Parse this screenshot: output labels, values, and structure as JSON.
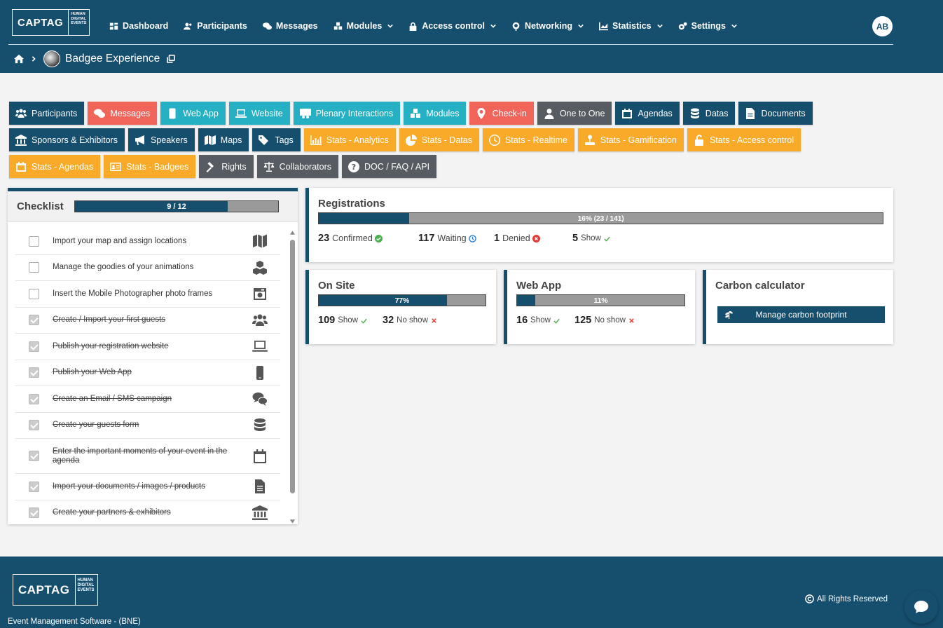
{
  "brand": {
    "logo_main": "CAPTAG",
    "logo_sub": [
      "HUMAN",
      "DIGITAL",
      "EVENTS"
    ]
  },
  "nav": [
    {
      "label": "Dashboard",
      "icon": "dashboard-icon",
      "dropdown": false
    },
    {
      "label": "Participants",
      "icon": "users-icon",
      "dropdown": false
    },
    {
      "label": "Messages",
      "icon": "chat-icon",
      "dropdown": false
    },
    {
      "label": "Modules",
      "icon": "cubes-icon",
      "dropdown": true
    },
    {
      "label": "Access control",
      "icon": "lock-icon",
      "dropdown": true
    },
    {
      "label": "Networking",
      "icon": "network-icon",
      "dropdown": true
    },
    {
      "label": "Statistics",
      "icon": "chart-icon",
      "dropdown": true
    },
    {
      "label": "Settings",
      "icon": "gears-icon",
      "dropdown": true
    }
  ],
  "user": {
    "initials": "AB"
  },
  "breadcrumb": {
    "event_name": "Badgee Experience"
  },
  "tiles": {
    "row1": [
      {
        "label": "Participants",
        "color": "#164e6e"
      },
      {
        "label": "Messages",
        "color": "#f0645a"
      },
      {
        "label": "Web App",
        "color": "#26b0c4"
      },
      {
        "label": "Website",
        "color": "#26b0c4"
      },
      {
        "label": "Plenary Interactions",
        "color": "#26b0c4"
      },
      {
        "label": "Modules",
        "color": "#26b0c4"
      },
      {
        "label": "Check-in",
        "color": "#f0645a"
      },
      {
        "label": "One to One",
        "color": "#565c61"
      },
      {
        "label": "Agendas",
        "color": "#164e6e"
      },
      {
        "label": "Datas",
        "color": "#164e6e"
      },
      {
        "label": "Documents",
        "color": "#164e6e"
      }
    ],
    "row2": [
      {
        "label": "Sponsors & Exhibitors",
        "color": "#164e6e"
      },
      {
        "label": "Speakers",
        "color": "#164e6e"
      },
      {
        "label": "Maps",
        "color": "#164e6e"
      },
      {
        "label": "Tags",
        "color": "#164e6e"
      },
      {
        "label": "Stats - Analytics",
        "color": "#f9aa28"
      },
      {
        "label": "Stats - Datas",
        "color": "#f9aa28"
      },
      {
        "label": "Stats - Realtime",
        "color": "#f9aa28"
      },
      {
        "label": "Stats - Gamification",
        "color": "#f9aa28"
      },
      {
        "label": "Stats - Access control",
        "color": "#f9aa28"
      }
    ],
    "row3": [
      {
        "label": "Stats - Agendas",
        "color": "#f9aa28"
      },
      {
        "label": "Stats - Badgees",
        "color": "#f9aa28"
      },
      {
        "label": "Rights",
        "color": "#565c61"
      },
      {
        "label": "Collaborators",
        "color": "#565c61"
      },
      {
        "label": "DOC / FAQ / API",
        "color": "#565c61"
      }
    ]
  },
  "checklist": {
    "title": "Checklist",
    "progress_text": "9 / 12",
    "progress_fraction": 0.75,
    "items": [
      {
        "text": "Import your map and assign locations",
        "done": false,
        "icon": "map-icon"
      },
      {
        "text": "Manage the goodies of your animations",
        "done": false,
        "icon": "cubes-icon"
      },
      {
        "text": "Insert the Mobile Photographer photo frames",
        "done": false,
        "icon": "camera-icon"
      },
      {
        "text": "Create / Import your first guests",
        "done": true,
        "icon": "users-icon"
      },
      {
        "text": "Publish your registration website",
        "done": true,
        "icon": "laptop-icon"
      },
      {
        "text": "Publish your Web App",
        "done": true,
        "icon": "mobile-icon"
      },
      {
        "text": "Create an Email / SMS campaign",
        "done": true,
        "icon": "chat-icon"
      },
      {
        "text": "Create your guests form",
        "done": true,
        "icon": "database-icon"
      },
      {
        "text": "Enter the important moments of your event in the agenda",
        "done": true,
        "icon": "calendar-icon"
      },
      {
        "text": "Import your documents / images / products",
        "done": true,
        "icon": "file-icon"
      },
      {
        "text": "Create your partners & exhibitors",
        "done": true,
        "icon": "bank-icon"
      }
    ]
  },
  "registrations": {
    "title": "Registrations",
    "bar_text": "16% (23 / 141)",
    "fraction": 0.16,
    "confirmed": {
      "count": "23",
      "label": "Confirmed"
    },
    "waiting": {
      "count": "117",
      "label": "Waiting"
    },
    "denied": {
      "count": "1",
      "label": "Denied"
    },
    "show": {
      "count": "5",
      "label": "Show"
    }
  },
  "onsite": {
    "title": "On Site",
    "bar_text": "77%",
    "fraction": 0.77,
    "show": {
      "count": "109",
      "label": "Show"
    },
    "noshow": {
      "count": "32",
      "label": "No show"
    }
  },
  "webapp": {
    "title": "Web App",
    "bar_text": "11%",
    "fraction": 0.11,
    "show": {
      "count": "16",
      "label": "Show"
    },
    "noshow": {
      "count": "125",
      "label": "No show"
    }
  },
  "carbon": {
    "title": "Carbon calculator",
    "button": "Manage carbon footprint"
  },
  "footer": {
    "tagline": "Event Management Software - (BNE)",
    "rights": "All Rights Reserved"
  },
  "colors": {
    "primary": "#164e6e",
    "red": "#f0645a",
    "teal": "#26b0c4",
    "gray": "#565c61",
    "orange": "#f9aa28"
  }
}
